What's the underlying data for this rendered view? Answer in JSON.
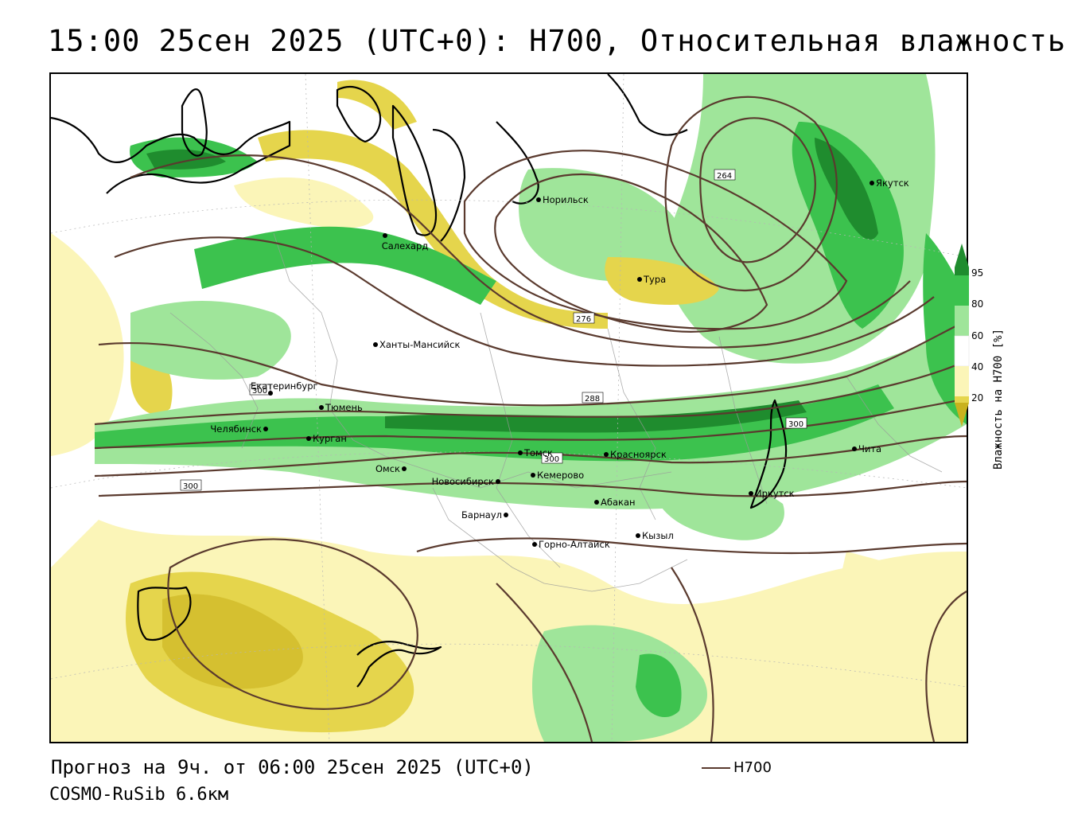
{
  "title": "15:00 25сен 2025 (UTC+0): H700, Относительная влажность",
  "forecast_line": "Прогноз на 9ч. от 06:00 25сен 2025 (UTC+0)",
  "model_line": "COSMO-RuSib 6.6км",
  "contour_legend_label": "H700",
  "legend": {
    "title": "Влажность на H700 [%]",
    "ticks": [
      "95",
      "80",
      "60",
      "40",
      "20"
    ],
    "colors": {
      "c95": "#1f8c2e",
      "c80": "#3cc24e",
      "c60": "#9fe59a",
      "c40": "#ffffff",
      "c30": "#fbf5b8",
      "c20": "#e5d54c",
      "c10": "#c9b21e"
    },
    "contour_color": "#5a3a2e"
  },
  "isohypse_labels": [
    "264",
    "276",
    "288",
    "300",
    "300",
    "300",
    "300"
  ],
  "cities": [
    "Норильск",
    "Салехард",
    "Тура",
    "Якутск",
    "Ханты-Мансийск",
    "Екатеринбург",
    "Тюмень",
    "Челябинск",
    "Курган",
    "Омск",
    "Новосибирск",
    "Томск",
    "Кемерово",
    "Красноярск",
    "Абакан",
    "Барнаул",
    "Горно-Алтайск",
    "Кызыл",
    "Иркутск",
    "Чита"
  ]
}
